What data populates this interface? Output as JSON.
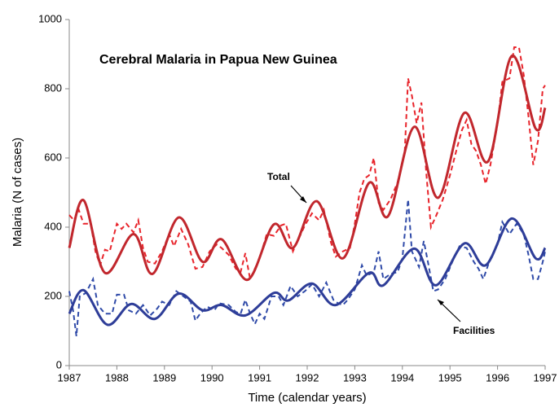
{
  "chart_data": {
    "type": "line",
    "title": "Cerebral Malaria in Papua New Guinea",
    "x_label": "Time (calendar years)",
    "y_label": "Malaria (N of cases)",
    "xlim": [
      1987,
      1997
    ],
    "xticks": [
      1987,
      1988,
      1989,
      1990,
      1991,
      1992,
      1993,
      1994,
      1995,
      1996,
      1997
    ],
    "ylim": [
      0,
      1000
    ],
    "yticks": [
      0,
      200,
      400,
      600,
      800,
      1000
    ],
    "annotations": [
      "Total",
      "Facilities"
    ],
    "series": [
      {
        "color": "#c1272d",
        "style": "solid",
        "x": [
          1987.0,
          1987.3,
          1987.75,
          1988.35,
          1988.75,
          1989.3,
          1989.8,
          1990.2,
          1990.75,
          1991.3,
          1991.7,
          1992.2,
          1992.75,
          1993.3,
          1993.7,
          1994.25,
          1994.75,
          1995.3,
          1995.8,
          1996.3,
          1996.8,
          1997.0
        ],
        "values": [
          340,
          478,
          268,
          380,
          265,
          428,
          300,
          365,
          248,
          408,
          340,
          475,
          310,
          528,
          432,
          690,
          485,
          730,
          590,
          895,
          685,
          745
        ]
      },
      {
        "color": "#e8242b",
        "style": "dashed",
        "x": [
          1987.0,
          1987.1,
          1987.2,
          1987.3,
          1987.45,
          1987.55,
          1987.65,
          1987.75,
          1987.85,
          1988.0,
          1988.1,
          1988.2,
          1988.35,
          1988.45,
          1988.55,
          1988.65,
          1988.8,
          1988.95,
          1989.1,
          1989.2,
          1989.35,
          1989.5,
          1989.65,
          1989.8,
          1989.95,
          1990.1,
          1990.2,
          1990.35,
          1990.5,
          1990.6,
          1990.7,
          1990.8,
          1991.0,
          1991.15,
          1991.3,
          1991.45,
          1991.55,
          1991.7,
          1991.85,
          1991.95,
          1992.1,
          1992.25,
          1992.35,
          1992.5,
          1992.6,
          1992.75,
          1992.9,
          1993.0,
          1993.1,
          1993.2,
          1993.3,
          1993.4,
          1993.5,
          1993.6,
          1993.75,
          1993.9,
          1994.05,
          1994.12,
          1994.2,
          1994.3,
          1994.4,
          1994.5,
          1994.6,
          1994.7,
          1994.85,
          1995.0,
          1995.15,
          1995.25,
          1995.35,
          1995.45,
          1995.55,
          1995.65,
          1995.75,
          1995.85,
          1996.0,
          1996.1,
          1996.25,
          1996.35,
          1996.45,
          1996.55,
          1996.65,
          1996.75,
          1996.85,
          1996.95,
          1997.0
        ],
        "values": [
          435,
          420,
          450,
          410,
          410,
          330,
          290,
          335,
          330,
          410,
          395,
          410,
          385,
          420,
          340,
          300,
          295,
          330,
          380,
          345,
          395,
          350,
          280,
          285,
          330,
          350,
          340,
          320,
          280,
          270,
          325,
          250,
          310,
          380,
          375,
          405,
          410,
          330,
          375,
          405,
          440,
          420,
          450,
          355,
          315,
          330,
          340,
          410,
          500,
          540,
          550,
          600,
          470,
          450,
          480,
          530,
          620,
          830,
          780,
          700,
          760,
          560,
          400,
          430,
          480,
          550,
          630,
          680,
          710,
          640,
          620,
          580,
          525,
          580,
          700,
          820,
          830,
          920,
          920,
          840,
          720,
          580,
          650,
          800,
          810
        ]
      },
      {
        "color": "#2e3d98",
        "style": "solid",
        "x": [
          1987.0,
          1987.3,
          1987.8,
          1988.3,
          1988.8,
          1989.3,
          1989.8,
          1990.2,
          1990.7,
          1991.3,
          1991.6,
          1992.1,
          1992.6,
          1993.3,
          1993.6,
          1994.25,
          1994.7,
          1995.3,
          1995.75,
          1996.3,
          1996.8,
          1997.0
        ],
        "values": [
          150,
          218,
          118,
          178,
          135,
          208,
          160,
          175,
          145,
          210,
          188,
          237,
          175,
          268,
          232,
          338,
          232,
          353,
          290,
          425,
          310,
          340
        ]
      },
      {
        "color": "#2f4aa8",
        "style": "dashed",
        "x": [
          1987.0,
          1987.08,
          1987.15,
          1987.22,
          1987.35,
          1987.5,
          1987.6,
          1987.75,
          1987.9,
          1988.0,
          1988.15,
          1988.25,
          1988.4,
          1988.55,
          1988.7,
          1988.85,
          1988.95,
          1989.1,
          1989.25,
          1989.4,
          1989.55,
          1989.65,
          1989.75,
          1989.9,
          1990.05,
          1990.15,
          1990.35,
          1990.5,
          1990.6,
          1990.7,
          1990.8,
          1990.9,
          1991.0,
          1991.1,
          1991.25,
          1991.4,
          1991.5,
          1991.65,
          1991.8,
          1991.95,
          1992.1,
          1992.25,
          1992.4,
          1992.55,
          1992.65,
          1992.75,
          1992.85,
          1993.0,
          1993.15,
          1993.25,
          1993.4,
          1993.5,
          1993.6,
          1993.75,
          1993.9,
          1994.0,
          1994.12,
          1994.2,
          1994.35,
          1994.45,
          1994.55,
          1994.65,
          1994.75,
          1994.9,
          1995.05,
          1995.2,
          1995.35,
          1995.5,
          1995.6,
          1995.7,
          1995.85,
          1996.0,
          1996.1,
          1996.25,
          1996.4,
          1996.55,
          1996.65,
          1996.75,
          1996.85,
          1996.95,
          1997.0
        ],
        "values": [
          215,
          160,
          85,
          200,
          210,
          250,
          175,
          150,
          150,
          205,
          205,
          160,
          150,
          175,
          145,
          165,
          185,
          175,
          215,
          200,
          185,
          130,
          150,
          170,
          160,
          180,
          175,
          155,
          150,
          190,
          150,
          120,
          150,
          135,
          200,
          200,
          175,
          230,
          200,
          215,
          235,
          200,
          240,
          190,
          180,
          175,
          190,
          220,
          290,
          260,
          270,
          330,
          250,
          265,
          270,
          310,
          480,
          330,
          285,
          360,
          290,
          215,
          220,
          250,
          300,
          345,
          340,
          300,
          280,
          250,
          310,
          350,
          415,
          380,
          410,
          380,
          320,
          250,
          250,
          300,
          330
        ]
      }
    ]
  }
}
